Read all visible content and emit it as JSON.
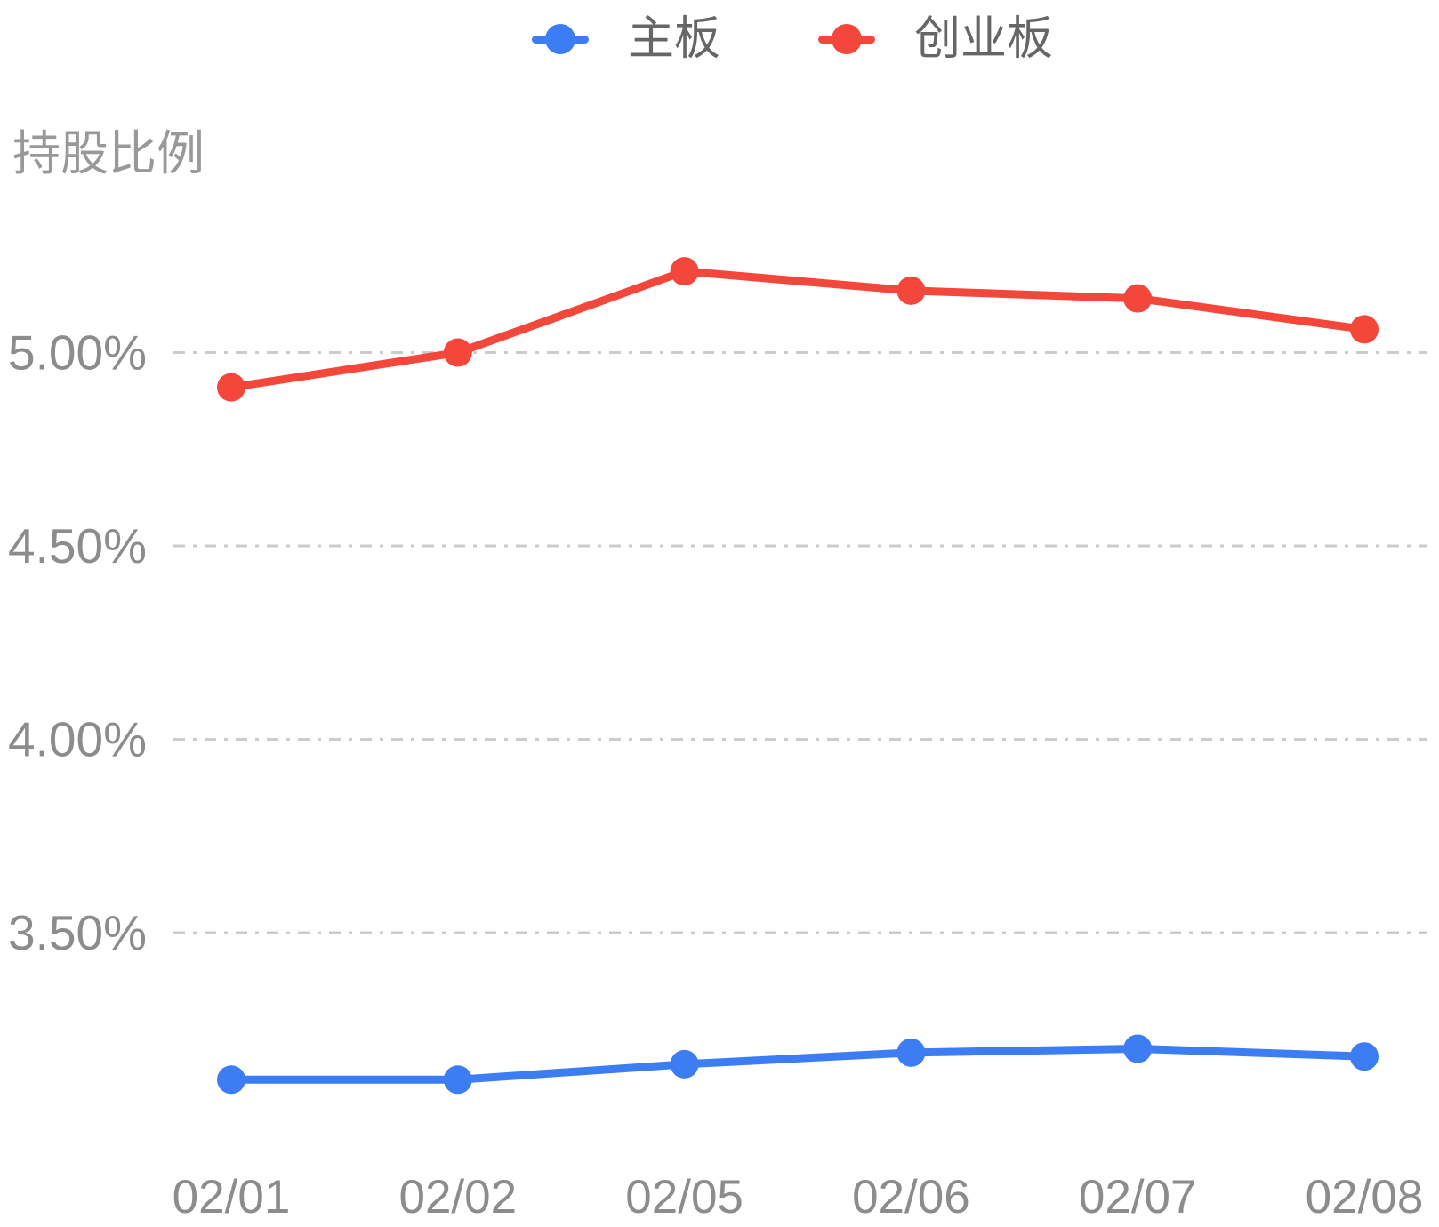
{
  "y_axis": {
    "title": "持股比例",
    "tick_labels": [
      "5.00%",
      "4.50%",
      "4.00%",
      "3.50%"
    ],
    "tick_values": [
      5.0,
      4.5,
      4.0,
      3.5
    ]
  },
  "legend": {
    "items": [
      {
        "label": "主板",
        "color": "#3C7DF4"
      },
      {
        "label": "创业板",
        "color": "#F4473C"
      }
    ]
  },
  "colors": {
    "main_board_blue": "#3C7DF4",
    "chinext_red": "#F4473C",
    "gridline": "#cccccc",
    "axis_text": "#8c8c8c",
    "title_text": "#999999",
    "legend_text": "#666666"
  },
  "chart_data": {
    "type": "line",
    "title": "",
    "xlabel": "",
    "ylabel": "持股比例",
    "categories": [
      "02/01",
      "02/02",
      "02/05",
      "02/06",
      "02/07",
      "02/08"
    ],
    "series": [
      {
        "name": "主板",
        "color": "#3C7DF4",
        "values": [
          3.12,
          3.12,
          3.16,
          3.19,
          3.2,
          3.18
        ]
      },
      {
        "name": "创业板",
        "color": "#F4473C",
        "values": [
          4.91,
          5.0,
          5.21,
          5.16,
          5.14,
          5.06
        ]
      }
    ],
    "y_ticks": [
      "5.00%",
      "4.50%",
      "4.00%",
      "3.50%"
    ],
    "y_tick_values": [
      5.0,
      4.5,
      4.0,
      3.5
    ],
    "ylim": [
      3.0,
      5.45
    ],
    "grid": "horizontal, dash-dot, no vertical gridlines, no axis lines",
    "legend_position": "top-center",
    "unit": "%"
  }
}
